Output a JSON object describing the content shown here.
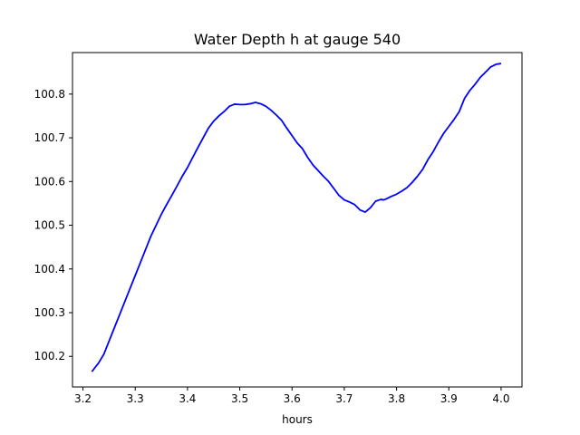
{
  "chart_data": {
    "type": "line",
    "title": "Water Depth h at gauge 540",
    "xlabel": "hours",
    "ylabel": "",
    "xlim": [
      3.18,
      4.04
    ],
    "ylim": [
      100.13,
      100.895
    ],
    "x_ticks": [
      3.2,
      3.3,
      3.4,
      3.5,
      3.6,
      3.7,
      3.8,
      3.9,
      4.0
    ],
    "x_tick_labels": [
      "3.2",
      "3.3",
      "3.4",
      "3.5",
      "3.6",
      "3.7",
      "3.8",
      "3.9",
      "4.0"
    ],
    "y_ticks": [
      100.2,
      100.3,
      100.4,
      100.5,
      100.6,
      100.7,
      100.8
    ],
    "y_tick_labels": [
      "100.2",
      "100.3",
      "100.4",
      "100.5",
      "100.6",
      "100.7",
      "100.8"
    ],
    "grid": false,
    "legend": "none",
    "series": [
      {
        "color": "#0000ff",
        "x": [
          3.217,
          3.23,
          3.24,
          3.25,
          3.26,
          3.27,
          3.28,
          3.29,
          3.3,
          3.31,
          3.32,
          3.33,
          3.34,
          3.35,
          3.36,
          3.37,
          3.38,
          3.39,
          3.4,
          3.41,
          3.42,
          3.43,
          3.44,
          3.45,
          3.46,
          3.47,
          3.48,
          3.49,
          3.5,
          3.51,
          3.52,
          3.53,
          3.54,
          3.55,
          3.56,
          3.57,
          3.58,
          3.59,
          3.6,
          3.61,
          3.62,
          3.63,
          3.64,
          3.65,
          3.66,
          3.67,
          3.68,
          3.69,
          3.7,
          3.71,
          3.72,
          3.73,
          3.74,
          3.75,
          3.76,
          3.77,
          3.775,
          3.78,
          3.79,
          3.8,
          3.81,
          3.82,
          3.83,
          3.84,
          3.85,
          3.86,
          3.87,
          3.88,
          3.89,
          3.9,
          3.91,
          3.92,
          3.93,
          3.94,
          3.95,
          3.96,
          3.97,
          3.98,
          3.99,
          4.0
        ],
        "y": [
          100.165,
          100.185,
          100.205,
          100.235,
          100.265,
          100.295,
          100.325,
          100.355,
          100.385,
          100.415,
          100.445,
          100.475,
          100.5,
          100.525,
          100.547,
          100.568,
          100.59,
          100.612,
          100.632,
          100.655,
          100.678,
          100.7,
          100.722,
          100.738,
          100.75,
          100.76,
          100.772,
          100.777,
          100.776,
          100.776,
          100.778,
          100.781,
          100.778,
          100.772,
          100.763,
          100.752,
          100.74,
          100.722,
          100.705,
          100.688,
          100.675,
          100.655,
          100.638,
          100.625,
          100.612,
          100.6,
          100.584,
          100.568,
          100.558,
          100.553,
          100.547,
          100.535,
          100.53,
          100.54,
          100.555,
          100.559,
          100.558,
          100.56,
          100.566,
          100.571,
          100.578,
          100.586,
          100.598,
          100.612,
          100.628,
          100.65,
          100.668,
          100.69,
          100.71,
          100.726,
          100.742,
          100.76,
          100.79,
          100.808,
          100.822,
          100.838,
          100.85,
          100.862,
          100.868,
          100.87
        ]
      }
    ]
  }
}
